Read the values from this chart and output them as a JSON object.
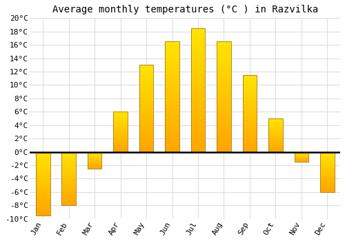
{
  "title": "Average monthly temperatures (°C ) in Razvilka",
  "months": [
    "Jan",
    "Feb",
    "Mar",
    "Apr",
    "May",
    "Jun",
    "Jul",
    "Aug",
    "Sep",
    "Oct",
    "Nov",
    "Dec"
  ],
  "values": [
    -9.5,
    -8.0,
    -2.5,
    6.0,
    13.0,
    16.5,
    18.5,
    16.5,
    11.5,
    5.0,
    -1.5,
    -6.0
  ],
  "bar_color_top": "#FFD040",
  "bar_color_bottom": "#FFA000",
  "bar_edge_color": "#AA7700",
  "ylim": [
    -10,
    20
  ],
  "yticks": [
    -10,
    -8,
    -6,
    -4,
    -2,
    0,
    2,
    4,
    6,
    8,
    10,
    12,
    14,
    16,
    18,
    20
  ],
  "ytick_labels": [
    "-10°C",
    "-8°C",
    "-6°C",
    "-4°C",
    "-2°C",
    "0°C",
    "2°C",
    "4°C",
    "6°C",
    "8°C",
    "10°C",
    "12°C",
    "14°C",
    "16°C",
    "18°C",
    "20°C"
  ],
  "background_color": "#ffffff",
  "plot_bg_color": "#f5f5f5",
  "grid_color": "#dddddd",
  "title_fontsize": 10,
  "tick_fontsize": 8,
  "bar_width": 0.55
}
